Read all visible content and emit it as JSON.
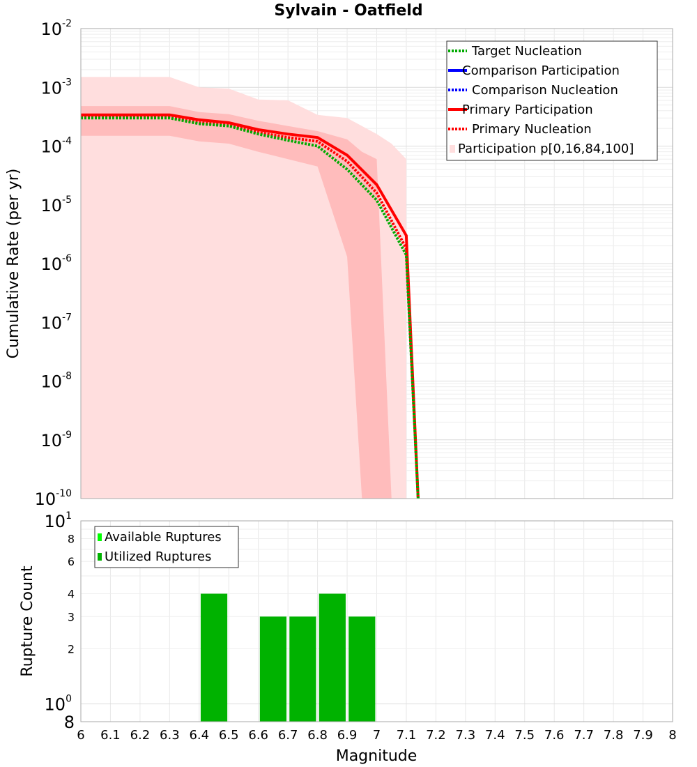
{
  "chart_data": [
    {
      "type": "line",
      "title": "Sylvain - Oatfield",
      "xlabel": "",
      "ylabel": "Cumulative Rate (per yr)",
      "yscale": "log",
      "xlim": [
        6,
        8
      ],
      "ylim": [
        1e-10,
        0.01
      ],
      "y_tick_labels": [
        {
          "value": 1e-10,
          "base": "10",
          "exp": "-10"
        },
        {
          "value": 1e-09,
          "base": "10",
          "exp": "-9"
        },
        {
          "value": 1e-08,
          "base": "10",
          "exp": "-8"
        },
        {
          "value": 1e-07,
          "base": "10",
          "exp": "-7"
        },
        {
          "value": 1e-06,
          "base": "10",
          "exp": "-6"
        },
        {
          "value": 1e-05,
          "base": "10",
          "exp": "-5"
        },
        {
          "value": 0.0001,
          "base": "10",
          "exp": "-4"
        },
        {
          "value": 0.001,
          "base": "10",
          "exp": "-3"
        },
        {
          "value": 0.01,
          "base": "10",
          "exp": "-2"
        }
      ],
      "bands": [
        {
          "name": "Participation p[0,16,84,100] (outer 0-100)",
          "color": "#ffdede",
          "x": [
            6,
            6.3,
            6.4,
            6.5,
            6.6,
            6.7,
            6.8,
            6.9,
            7.0,
            7.05,
            7.1
          ],
          "upper": [
            0.0015,
            0.0015,
            0.001,
            0.00095,
            0.00062,
            0.0006,
            0.00034,
            0.0003,
            0.00016,
            0.00011,
            6e-05
          ],
          "lower": [
            1e-10,
            1e-10,
            1e-10,
            1e-10,
            1e-10,
            1e-10,
            1e-10,
            1e-10,
            1e-10,
            1e-10,
            1e-10
          ]
        },
        {
          "name": "Participation p[0,16,84,100] (inner 16-84)",
          "color": "#ffbcbc",
          "x": [
            6,
            6.3,
            6.4,
            6.5,
            6.6,
            6.7,
            6.8,
            6.9,
            6.95,
            7.0,
            7.05
          ],
          "upper": [
            0.00048,
            0.00048,
            0.00038,
            0.00035,
            0.00027,
            0.00022,
            0.00018,
            0.00013,
            8e-05,
            6e-05,
            1e-10
          ],
          "lower": [
            0.00015,
            0.00015,
            0.00012,
            0.00011,
            8e-05,
            6e-05,
            4.5e-05,
            1.3e-06,
            1e-10,
            1e-10,
            1e-10
          ]
        }
      ],
      "series": [
        {
          "name": "Primary Participation",
          "color": "#ff0000",
          "dash": "solid",
          "x": [
            6,
            6.3,
            6.4,
            6.5,
            6.6,
            6.7,
            6.8,
            6.9,
            7.0,
            7.1,
            7.14
          ],
          "values": [
            0.00034,
            0.00034,
            0.00028,
            0.00025,
            0.00019,
            0.00016,
            0.00014,
            7e-05,
            2.2e-05,
            3e-06,
            1e-10
          ]
        },
        {
          "name": "Primary Nucleation",
          "color": "#ff0000",
          "dash": "dotted",
          "x": [
            6,
            6.3,
            6.4,
            6.5,
            6.6,
            6.7,
            6.8,
            6.9,
            7.0,
            7.1,
            7.14
          ],
          "values": [
            0.00031,
            0.00031,
            0.00025,
            0.00023,
            0.00017,
            0.00014,
            0.00012,
            5.5e-05,
            1.6e-05,
            1.8e-06,
            1e-10
          ]
        },
        {
          "name": "Target Nucleation",
          "color": "#00aa00",
          "dash": "dotted",
          "x": [
            6,
            6.3,
            6.4,
            6.5,
            6.6,
            6.7,
            6.8,
            6.9,
            7.0,
            7.1,
            7.14
          ],
          "values": [
            0.0003,
            0.0003,
            0.00024,
            0.00022,
            0.00016,
            0.000125,
            0.0001,
            4e-05,
            1.2e-05,
            1.4e-06,
            1e-10
          ]
        }
      ],
      "legend": {
        "placement": "top-right",
        "entries": [
          {
            "label": "Target Nucleation",
            "color": "#00aa00",
            "style": "dotted"
          },
          {
            "label": "Comparison Participation",
            "color": "#0000ff",
            "style": "solid"
          },
          {
            "label": "Comparison Nucleation",
            "color": "#0000ff",
            "style": "dotted"
          },
          {
            "label": "Primary Participation",
            "color": "#ff0000",
            "style": "solid"
          },
          {
            "label": "Primary Nucleation",
            "color": "#ff0000",
            "style": "dotted"
          },
          {
            "label": "Participation p[0,16,84,100]",
            "color": "#ffdede",
            "style": "box"
          }
        ]
      }
    },
    {
      "type": "bar",
      "xlabel": "Magnitude",
      "ylabel": "Rupture Count",
      "yscale": "log",
      "xlim": [
        6,
        8
      ],
      "ylim": [
        0.8,
        10
      ],
      "x_ticks": [
        "6",
        "6.1",
        "6.2",
        "6.3",
        "6.4",
        "6.5",
        "6.6",
        "6.7",
        "6.8",
        "6.9",
        "7",
        "7.1",
        "7.2",
        "7.3",
        "7.4",
        "7.5",
        "7.6",
        "7.7",
        "7.8",
        "7.9",
        "8"
      ],
      "y_minor_ticks": [
        "2",
        "3",
        "4",
        "6",
        "8"
      ],
      "y_major_ticks": [
        {
          "value": 1,
          "base": "10",
          "exp": "0"
        },
        {
          "value": 10,
          "base": "10",
          "exp": "1"
        }
      ],
      "y_bottom_label": "8",
      "bar_width": 0.09,
      "bars": [
        {
          "x": 6.45,
          "value": 4
        },
        {
          "x": 6.65,
          "value": 3
        },
        {
          "x": 6.75,
          "value": 3
        },
        {
          "x": 6.85,
          "value": 4
        },
        {
          "x": 6.95,
          "value": 3
        }
      ],
      "legend": {
        "placement": "top-left",
        "entries": [
          {
            "label": "Available Ruptures",
            "color": "#00ff00"
          },
          {
            "label": "Utilized Ruptures",
            "color": "#00b200"
          }
        ]
      },
      "bar_color": "#00b200"
    }
  ]
}
